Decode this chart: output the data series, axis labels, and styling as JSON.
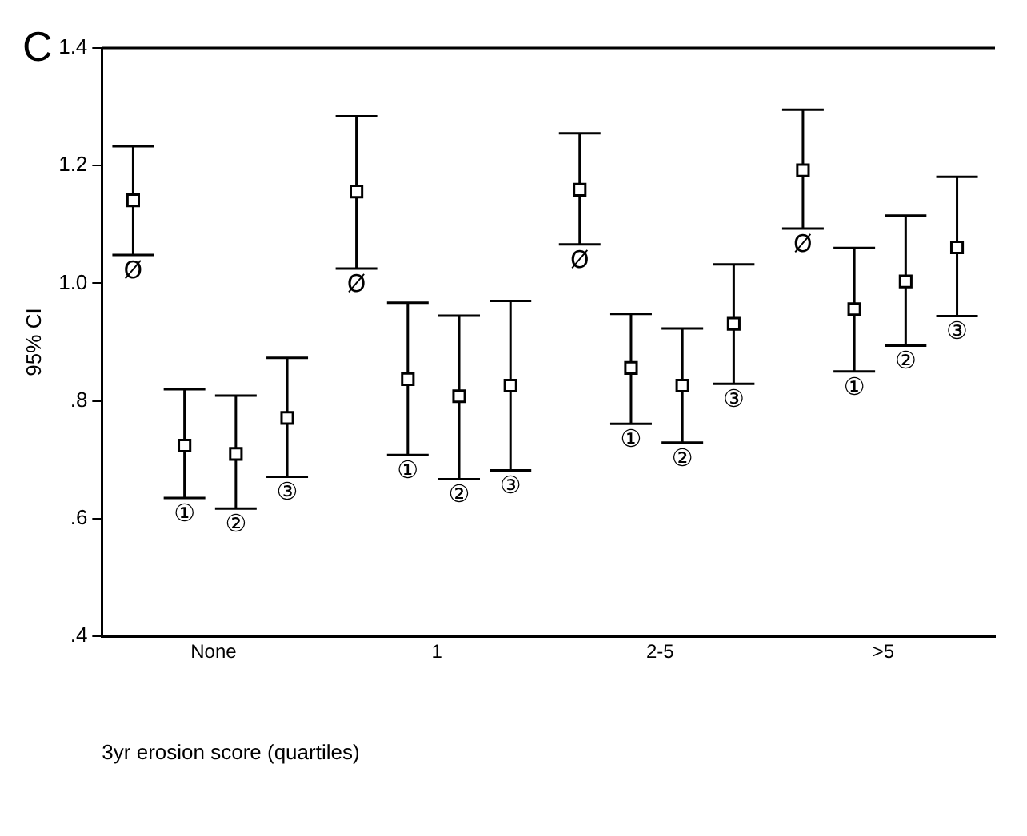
{
  "chart_data": {
    "type": "scatter",
    "annotations": [
      "C"
    ],
    "xlabel": "3yr erosion score (quartiles)",
    "ylabel": "95% CI",
    "categories": [
      "None",
      "1",
      "2-5",
      ">5"
    ],
    "ylim": [
      0.4,
      1.4
    ],
    "yticks": [
      {
        "value": 0.4,
        "label": ".4"
      },
      {
        "value": 0.6,
        "label": ".6"
      },
      {
        "value": 0.8,
        "label": ".8"
      },
      {
        "value": 1.0,
        "label": "1.0"
      },
      {
        "value": 1.2,
        "label": "1.2"
      },
      {
        "value": 1.4,
        "label": "1.4"
      }
    ],
    "marker": "square",
    "grid": false,
    "series": [
      {
        "name": "Ø",
        "color": "#000000",
        "values": [
          1.141,
          1.156,
          1.159,
          1.192
        ],
        "errors": [
          [
            1.048,
            1.233
          ],
          [
            1.025,
            1.284
          ],
          [
            1.066,
            1.255
          ],
          [
            1.093,
            1.295
          ]
        ]
      },
      {
        "name": "①",
        "color": "#000000",
        "values": [
          0.724,
          0.837,
          0.856,
          0.956
        ],
        "errors": [
          [
            0.635,
            0.82
          ],
          [
            0.708,
            0.967
          ],
          [
            0.761,
            0.948
          ],
          [
            0.85,
            1.06
          ]
        ]
      },
      {
        "name": "②",
        "color": "#000000",
        "values": [
          0.71,
          0.808,
          0.826,
          1.003
        ],
        "errors": [
          [
            0.617,
            0.809
          ],
          [
            0.667,
            0.945
          ],
          [
            0.729,
            0.923
          ],
          [
            0.894,
            1.115
          ]
        ]
      },
      {
        "name": "③",
        "color": "#000000",
        "values": [
          0.771,
          0.826,
          0.931,
          1.061
        ],
        "errors": [
          [
            0.671,
            0.873
          ],
          [
            0.682,
            0.97
          ],
          [
            0.829,
            1.032
          ],
          [
            0.944,
            1.181
          ]
        ]
      }
    ]
  }
}
